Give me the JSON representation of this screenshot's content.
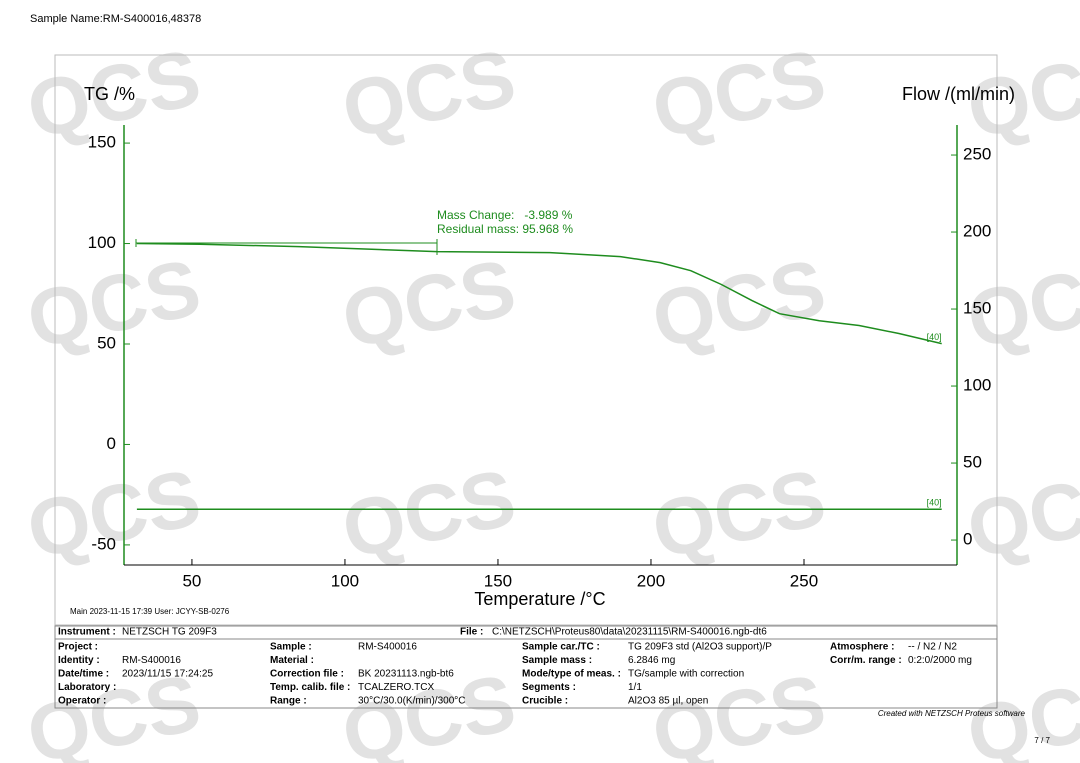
{
  "header": {
    "sample_name": "Sample Name:RM-S400016,48378"
  },
  "watermark": "QCS",
  "chart_data": {
    "type": "line",
    "ylabel": "TG /%",
    "y2label": "Flow /(ml/min)",
    "xlabel": "Temperature /°C",
    "x": [
      32,
      52.6,
      85,
      130,
      167,
      190,
      203,
      213,
      223,
      233,
      242,
      255,
      268,
      281,
      295
    ],
    "series": [
      {
        "name": "TG",
        "color": "#1e8c1e",
        "label": "[40]",
        "values": [
          100,
          99.6,
          98.5,
          96.0,
          95.5,
          93.5,
          90.5,
          86.5,
          79.6,
          71.6,
          65.1,
          61.6,
          59.2,
          55.2,
          50.2
        ]
      },
      {
        "name": "Flow",
        "color": "#1e8c1e",
        "axis": "y2",
        "label": "[40]",
        "values": [
          20,
          20,
          20,
          20,
          20,
          20,
          20,
          20,
          20,
          20,
          20,
          20,
          20,
          20,
          20
        ]
      }
    ],
    "xlim": [
      27.8,
      300
    ],
    "xticks": [
      50,
      100,
      150,
      200,
      250
    ],
    "ylim": [
      -60,
      159
    ],
    "yticks": [
      -50,
      0,
      50,
      100,
      150
    ],
    "y2lim": [
      -16.2,
      269.5
    ],
    "y2ticks": [
      0,
      50,
      100,
      150,
      200,
      250
    ],
    "annotations": [
      "Mass Change:   -3.989 %",
      "Residual mass: 95.968 %"
    ]
  },
  "footer": {
    "main": "Main   2023-11-15 17:39   User: JCYY-SB-0276",
    "created": "Created with NETZSCH Proteus software",
    "page": "7 / 7"
  },
  "info": {
    "instrument": {
      "label": "Instrument :",
      "value": "NETZSCH TG 209F3"
    },
    "file": {
      "label": "File :",
      "value": "C:\\NETZSCH\\Proteus80\\data\\20231115\\RM-S400016.ngb-dt6"
    },
    "rows": [
      [
        {
          "label": "Project :"
        },
        {
          "label": "Sample :",
          "value": "RM-S400016"
        },
        {
          "label": "Sample car./TC :",
          "value": "TG 209F3 std (Al2O3 support)/P"
        },
        {
          "label": "Atmosphere :",
          "value": "-- / N2 / N2"
        }
      ],
      [
        {
          "label": "Identity :",
          "value": "RM-S400016"
        },
        {
          "label": "Material :"
        },
        {
          "label": "Sample mass :",
          "value": "6.2846 mg"
        },
        {
          "label": "Corr/m. range :",
          "value": "0:2:0/2000 mg"
        }
      ],
      [
        {
          "label": "Date/time :",
          "value": "2023/11/15 17:24:25"
        },
        {
          "label": "Correction file :",
          "value": "BK 20231113.ngb-bt6"
        },
        {
          "label": "Mode/type of meas. :",
          "value": "TG/sample with correction"
        },
        null
      ],
      [
        {
          "label": "Laboratory :"
        },
        {
          "label": "Temp. calib. file :",
          "value": "TCALZERO.TCX"
        },
        {
          "label": "Segments :",
          "value": "1/1"
        },
        null
      ],
      [
        {
          "label": "Operator :"
        },
        {
          "label": "Range :",
          "value": "30°C/30.0(K/min)/300°C"
        },
        {
          "label": "Crucible :",
          "value": "Al2O3 85 µl, open"
        },
        null
      ]
    ]
  }
}
